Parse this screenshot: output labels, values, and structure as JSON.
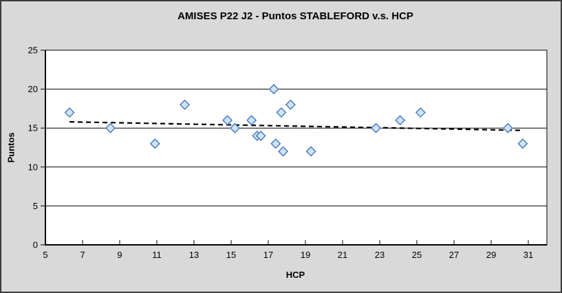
{
  "chart_data": {
    "type": "scatter",
    "title": "AMISES P22 J2 - Puntos STABLEFORD v.s. HCP",
    "xlabel": "HCP",
    "ylabel": "Puntos",
    "xlim": [
      5,
      32
    ],
    "ylim": [
      0,
      25
    ],
    "x_ticks": [
      5,
      7,
      9,
      11,
      13,
      15,
      17,
      19,
      21,
      23,
      25,
      27,
      29,
      31
    ],
    "y_ticks": [
      0,
      5,
      10,
      15,
      20,
      25
    ],
    "grid": "horizontal-only",
    "legend": "none",
    "series": [
      {
        "name": "Puntos STABLEFORD vs HCP",
        "marker": "diamond",
        "points": [
          [
            6.3,
            17
          ],
          [
            8.5,
            15
          ],
          [
            10.9,
            13
          ],
          [
            12.5,
            18
          ],
          [
            14.8,
            16
          ],
          [
            15.2,
            15
          ],
          [
            16.1,
            16
          ],
          [
            16.4,
            14
          ],
          [
            16.6,
            14
          ],
          [
            17.3,
            20
          ],
          [
            17.4,
            13
          ],
          [
            17.7,
            17
          ],
          [
            17.8,
            12
          ],
          [
            18.2,
            18
          ],
          [
            19.3,
            12
          ],
          [
            22.8,
            15
          ],
          [
            24.1,
            16
          ],
          [
            25.2,
            17
          ],
          [
            29.9,
            15
          ],
          [
            30.7,
            13
          ]
        ]
      }
    ],
    "trendline": {
      "type": "linear",
      "style": "dashed",
      "start": [
        6.3,
        15.8
      ],
      "end": [
        30.7,
        14.7
      ]
    }
  },
  "colors": {
    "frame_background": "#d9d9d9",
    "plot_background": "#ffffff",
    "axis_line": "#000000",
    "gridline": "#000000",
    "text": "#000000",
    "marker_fill": "#c9e7f8",
    "marker_stroke": "#4a70b8",
    "trendline": "#000000"
  }
}
